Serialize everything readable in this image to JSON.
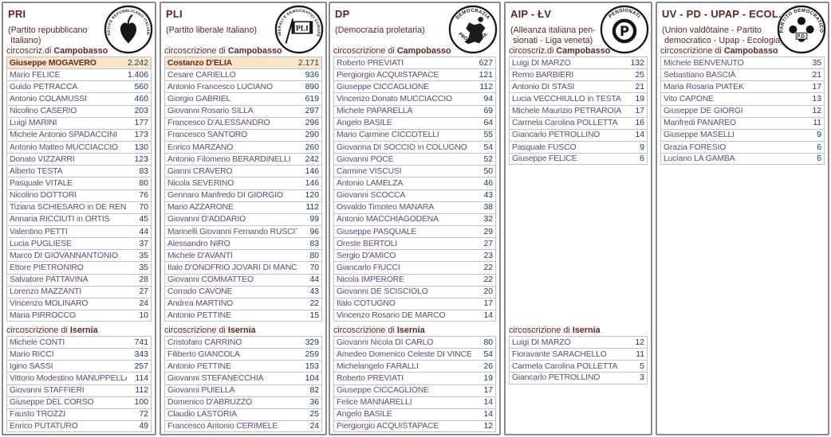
{
  "colors": {
    "header_maroon": "#632423",
    "candidate_purple": "#5F497A",
    "votes_navy": "#17375D",
    "highlight_cream": "#FBE5C9",
    "row_border_gray": "#C2C2C2",
    "column_border_gray": "#8A8A8A"
  },
  "columns": [
    {
      "code": "PRI",
      "subtitle_lines": [
        "(Partito repubblicano",
        " Italiano)"
      ],
      "logo": {
        "icon_name": "pri-party-logo",
        "ring_text": "PARTITO REPUBBLICANO ITALIANO",
        "symbol": "ivy-leaf"
      },
      "sections": [
        {
          "label_prefix": "circoscriz.di ",
          "label_district": "Campobasso",
          "rows": [
            {
              "name": "Giuseppe MOGAVERO",
              "votes": "2.242",
              "highlight": true
            },
            {
              "name": "Mario FELICE",
              "votes": "1.406"
            },
            {
              "name": "Guido PETRACCA",
              "votes": "560"
            },
            {
              "name": "Antonio COLAMUSSI",
              "votes": "460"
            },
            {
              "name": "Nicolino CASERIO",
              "votes": "203"
            },
            {
              "name": "Luigi MARINI",
              "votes": "177"
            },
            {
              "name": "Michele Antonio SPADACCINI",
              "votes": "173"
            },
            {
              "name": "Antonio Matteo MUCCIACCIO",
              "votes": "130"
            },
            {
              "name": "Donato VIZZARRI",
              "votes": "123"
            },
            {
              "name": "Alberto TESTA",
              "votes": "83"
            },
            {
              "name": "Pasquale VITALE",
              "votes": "80"
            },
            {
              "name": "Nicolino DOTTORI",
              "votes": "76"
            },
            {
              "name": "Tiziana SCHIESARO in DE RENSIS",
              "votes": "70"
            },
            {
              "name": "Annaria RICCIUTI in ORTIS",
              "votes": "45"
            },
            {
              "name": "Valentino PETTI",
              "votes": "44"
            },
            {
              "name": "Lucia PUGLIESE",
              "votes": "37"
            },
            {
              "name": "Marco DI GIOVANNANTONIO",
              "votes": "35"
            },
            {
              "name": "Ettore PIETRONIRO",
              "votes": "35"
            },
            {
              "name": "Salvatore PATTAVINA",
              "votes": "28"
            },
            {
              "name": "Lorenzo MAZZANTI",
              "votes": "27"
            },
            {
              "name": "Vincenzo MOLINARO",
              "votes": "24"
            },
            {
              "name": "Maria PIRROCCO",
              "votes": "10"
            }
          ]
        },
        {
          "label_prefix": "circoscrizione di ",
          "label_district": "Isernia",
          "rows": [
            {
              "name": "Michele CONTI",
              "votes": "741"
            },
            {
              "name": "Mario RICCI",
              "votes": "343"
            },
            {
              "name": "Igino SASSI",
              "votes": "257"
            },
            {
              "name": "Vittorio Modestino MANUPPELLA",
              "votes": "114"
            },
            {
              "name": "Giovanni STAFFIERI",
              "votes": "112"
            },
            {
              "name": "Giuseppe DEL CORSO",
              "votes": "100"
            },
            {
              "name": "Fausto TROZZI",
              "votes": "72"
            },
            {
              "name": "Enrico PUTATURO",
              "votes": "49"
            }
          ]
        }
      ]
    },
    {
      "code": "PLI",
      "subtitle_lines": [
        "(Partito liberale Italiano)"
      ],
      "logo": {
        "icon_name": "pli-party-logo",
        "ring_text": "LIBERALI E DEMOCRATICI EUROPEI",
        "symbol": "pli-flag",
        "flag_text": "PLI"
      },
      "sections": [
        {
          "label_prefix": "circoscrizione di ",
          "label_district": "Campobasso",
          "rows": [
            {
              "name": "Costanzo D'ELIA",
              "votes": "2.171",
              "highlight": true
            },
            {
              "name": "Cesare CARIELLO",
              "votes": "936"
            },
            {
              "name": "Antonio Francesco LUCIANO",
              "votes": "890"
            },
            {
              "name": "Giorgio GABRIEL",
              "votes": "619"
            },
            {
              "name": "Giovanni Rosario SILLA",
              "votes": "297"
            },
            {
              "name": "Francesco D'ALESSANDRO",
              "votes": "296"
            },
            {
              "name": "Francesco SANTORO",
              "votes": "290"
            },
            {
              "name": "Enrico MARZANO",
              "votes": "260"
            },
            {
              "name": "Antonio Filomeno BERARDINELLI",
              "votes": "242"
            },
            {
              "name": "Gianni CRAVERO",
              "votes": "146"
            },
            {
              "name": "Nicola SEVERINO",
              "votes": "146"
            },
            {
              "name": "Gennaro Manfredo DI GIORGIO",
              "votes": "120"
            },
            {
              "name": "Mario AZZARONE",
              "votes": "112"
            },
            {
              "name": "Giovanni D'ADDARIO",
              "votes": "99"
            },
            {
              "name": "Marinelli Giovanni Fernando RUSCITTO",
              "votes": "96"
            },
            {
              "name": "Alessandro NIRO",
              "votes": "83"
            },
            {
              "name": "Michele D'AVANTI",
              "votes": "80"
            },
            {
              "name": "Italo D'ONOFRIO JOVARI DI MANCIPA",
              "votes": "70"
            },
            {
              "name": "Giovanni COMMATTEO",
              "votes": "44"
            },
            {
              "name": "Corrado CAVONE",
              "votes": "43"
            },
            {
              "name": "Andrea MARTINO",
              "votes": "22"
            },
            {
              "name": "Antonio PETTINE",
              "votes": "15"
            }
          ]
        },
        {
          "label_prefix": "circoscrizione di ",
          "label_district": "Isernia",
          "rows": [
            {
              "name": "Cristofaro CARRINO",
              "votes": "329"
            },
            {
              "name": "Filiberto GIANCOLA",
              "votes": "259"
            },
            {
              "name": "Antonio PETTINE",
              "votes": "153"
            },
            {
              "name": "Giovanni STEFANECCHIA",
              "votes": "104"
            },
            {
              "name": "Giovanni PUIELLA",
              "votes": "82"
            },
            {
              "name": "Domenico D'ABRUZZO",
              "votes": "36"
            },
            {
              "name": "Claudio LASTORIA",
              "votes": "25"
            },
            {
              "name": "Francesco Antonio CERIMELE",
              "votes": "24"
            }
          ]
        }
      ]
    },
    {
      "code": "DP",
      "subtitle_lines": [
        "(Democrazia proletaria)"
      ],
      "logo": {
        "icon_name": "dp-party-logo",
        "ring_text": "DEMOCRAZIA",
        "ring_text_bottom": "PROLETARIA",
        "symbol": "raised-fist"
      },
      "sections": [
        {
          "label_prefix": "circoscrizione di ",
          "label_district": "Campobasso",
          "rows": [
            {
              "name": "Roberto PREVIATI",
              "votes": "627"
            },
            {
              "name": "Piergiorgio ACQUISTAPACE",
              "votes": "121"
            },
            {
              "name": "Giuseppe CICCAGLIONE",
              "votes": "112"
            },
            {
              "name": "Vincenzo Donato MUCCIACCIO",
              "votes": "94"
            },
            {
              "name": "Michele PAPARELLA",
              "votes": "69"
            },
            {
              "name": "Angelo BASILE",
              "votes": "64"
            },
            {
              "name": "Mario Carmine CICCOTELLI",
              "votes": "55"
            },
            {
              "name": "Giovanna DI SOCCIO in COLUGNO",
              "votes": "54"
            },
            {
              "name": "Giovanni POCE",
              "votes": "52"
            },
            {
              "name": "Carmine VISCUSI",
              "votes": "50"
            },
            {
              "name": "Antonio LAMELZA",
              "votes": "46"
            },
            {
              "name": "Giovanni SCOCCA",
              "votes": "43"
            },
            {
              "name": "Osvaldo Timoteo MANARA",
              "votes": "38"
            },
            {
              "name": "Antonio MACCHIAGODENA",
              "votes": "32"
            },
            {
              "name": "Giuseppe PASQUALE",
              "votes": "29"
            },
            {
              "name": "Oreste BERTOLI",
              "votes": "27"
            },
            {
              "name": "Sergio D'AMICO",
              "votes": "23"
            },
            {
              "name": "Giancarlo FIUCCI",
              "votes": "22"
            },
            {
              "name": "Nicola IMPERORE",
              "votes": "22"
            },
            {
              "name": "Giovanni DE SCISCIOLO",
              "votes": "20"
            },
            {
              "name": "Italo COTUGNO",
              "votes": "17"
            },
            {
              "name": "Vincenzo Rosario DE MARCO",
              "votes": "14"
            }
          ]
        },
        {
          "label_prefix": "circoscrizione di ",
          "label_district": "Isernia",
          "rows": [
            {
              "name": "Giovanni Nicola DI CARLO",
              "votes": "80"
            },
            {
              "name": "Amedeo Domenico Celeste DI VINCENZO",
              "votes": "54"
            },
            {
              "name": "Michelangelo FARALLI",
              "votes": "26"
            },
            {
              "name": "Roberto PREVIATI",
              "votes": "19"
            },
            {
              "name": "Giuseppe CICCAGLIONE",
              "votes": "17"
            },
            {
              "name": "Felice MANNARELLI",
              "votes": "14"
            },
            {
              "name": "Angelo BASILE",
              "votes": "14"
            },
            {
              "name": "Piergiorgio ACQUISTAPACE",
              "votes": "12"
            }
          ]
        }
      ]
    },
    {
      "code": "AIP - ŁV",
      "subtitle_lines": [
        "(Alleanza italiana pen-",
        " sionati - Liga veneta)"
      ],
      "logo": {
        "icon_name": "aip-pensionati-logo",
        "ring_text": "PENSIONATI",
        "symbol": "letter-p-ring"
      },
      "sections": [
        {
          "label_prefix": "circoscriz.di ",
          "label_district": "Campobasso",
          "rows": [
            {
              "name": "Luigi DI MARZO",
              "votes": "132"
            },
            {
              "name": "Remo BARBIERI",
              "votes": "25"
            },
            {
              "name": "Antonio DI STASI",
              "votes": "21"
            },
            {
              "name": "Lucia VECCHIULLO in TESTA",
              "votes": "19"
            },
            {
              "name": "Michele Maurizio PETRAROIA",
              "votes": "17"
            },
            {
              "name": "Carmela Carolina POLLETTA",
              "votes": "16"
            },
            {
              "name": "Giancarlo PETROLLINO",
              "votes": "14"
            },
            {
              "name": "Pasquale FUSCO",
              "votes": "9"
            },
            {
              "name": "Giuseppe FELICE",
              "votes": "6"
            }
          ]
        },
        {
          "label_prefix": "circoscrizione di ",
          "label_district": "Isernia",
          "rows": [
            {
              "name": "Luigi DI MARZO",
              "votes": "12"
            },
            {
              "name": "Fioravante SARACHELLO",
              "votes": "11"
            },
            {
              "name": "Carmela Carolina POLLETTA",
              "votes": "5"
            },
            {
              "name": "Giancarlo PETROLLINO",
              "votes": "3"
            }
          ]
        }
      ]
    },
    {
      "code": "UV - PD - UPAP - ECOL.",
      "subtitle_lines": [
        "(Union valdôtaine - Partito",
        " democratico - Upap - Ecologia)"
      ],
      "logo": {
        "icon_name": "pd-party-logo",
        "ring_text": "PARTITO DEMOCRATICO",
        "symbol": "pd-clover",
        "center_text": "P.D."
      },
      "sections": [
        {
          "label_prefix": "circoscrizione di ",
          "label_district": "Campobasso",
          "rows": [
            {
              "name": "Michele BENVENUTO",
              "votes": "35"
            },
            {
              "name": "Sebastiano BASCIÀ",
              "votes": "21"
            },
            {
              "name": "Maria Rosaria PIATEK",
              "votes": "17"
            },
            {
              "name": "Vito CAPONE",
              "votes": "13"
            },
            {
              "name": "Giuseppe DE GIORGI",
              "votes": "12"
            },
            {
              "name": "Manfredi PANAREO",
              "votes": "11"
            },
            {
              "name": "Giuseppe MASELLI",
              "votes": "9"
            },
            {
              "name": "Grazia FORESIO",
              "votes": "6"
            },
            {
              "name": "Luciano LA GAMBA",
              "votes": "6"
            }
          ]
        }
      ]
    }
  ]
}
